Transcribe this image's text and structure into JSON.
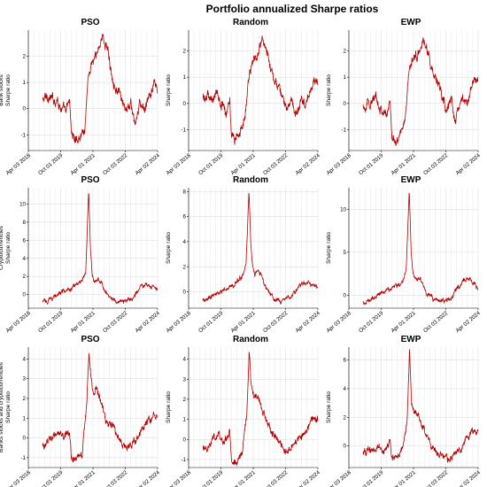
{
  "figure": {
    "title": "Portfolio annualized Sharpe ratios",
    "series_color": "#b30000"
  },
  "chart_data": [
    {
      "type": "line",
      "row": 0,
      "col": 0,
      "title": "PSO",
      "ylabel_lines": [
        "Bank stocks",
        "Sharpe ratio"
      ],
      "xlabel": "",
      "x_ticks": [
        "Apr 03 2018",
        "Oct 01 2019",
        "Apr 01 2021",
        "Oct 03 2022",
        "Apr 02 2024"
      ],
      "xlim": [
        "2018-04-03",
        "2024-04-02"
      ],
      "ylim": [
        -1.6,
        3.0
      ],
      "y_ticks": [
        -1,
        0,
        1,
        2
      ],
      "grid": true,
      "series": [
        {
          "x": [
            "2018-12-01",
            "2019-03-01",
            "2019-06-01",
            "2019-08-01",
            "2019-10-01",
            "2020-01-01",
            "2020-03-01",
            "2020-04-01",
            "2020-06-01",
            "2020-08-01",
            "2020-10-01",
            "2020-11-15",
            "2021-01-01",
            "2021-03-01",
            "2021-06-01",
            "2021-09-01",
            "2021-12-01",
            "2022-02-01",
            "2022-05-01",
            "2022-08-01",
            "2022-10-01",
            "2023-01-01",
            "2023-03-15",
            "2023-06-01",
            "2023-09-01",
            "2023-12-01",
            "2024-02-01",
            "2024-04-01"
          ],
          "y": [
            0.3,
            0.5,
            0.3,
            0.4,
            0.1,
            -0.2,
            0.4,
            -0.9,
            -1.2,
            -1.1,
            -0.9,
            -0.8,
            1.0,
            1.7,
            2.0,
            2.8,
            2.3,
            1.5,
            0.8,
            0.3,
            -0.2,
            0.2,
            -0.7,
            0.1,
            0.0,
            0.5,
            1.0,
            0.7
          ],
          "noise": 0.22
        }
      ]
    },
    {
      "type": "line",
      "row": 0,
      "col": 1,
      "title": "Random",
      "ylabel_lines": [
        "Sharpe ratio"
      ],
      "xlabel": "",
      "x_ticks": [
        "Apr 03 2018",
        "Oct 01 2019",
        "Apr 01 2021",
        "Oct 03 2022",
        "Apr 02 2024"
      ],
      "xlim": [
        "2018-04-03",
        "2024-04-02"
      ],
      "ylim": [
        -1.8,
        2.8
      ],
      "y_ticks": [
        -1,
        0,
        1,
        2
      ],
      "grid": true,
      "series": [
        {
          "x": [
            "2018-12-01",
            "2019-03-01",
            "2019-06-01",
            "2019-08-01",
            "2019-10-01",
            "2020-01-01",
            "2020-03-01",
            "2020-04-01",
            "2020-06-01",
            "2020-08-01",
            "2020-10-01",
            "2020-11-15",
            "2021-01-01",
            "2021-03-01",
            "2021-06-01",
            "2021-09-01",
            "2021-12-01",
            "2022-02-01",
            "2022-05-01",
            "2022-08-01",
            "2022-10-01",
            "2023-01-01",
            "2023-03-15",
            "2023-06-01",
            "2023-09-01",
            "2023-12-01",
            "2024-02-01",
            "2024-04-01"
          ],
          "y": [
            0.2,
            0.3,
            0.2,
            0.4,
            0.0,
            -0.3,
            0.3,
            -1.2,
            -1.4,
            -1.1,
            -0.9,
            -0.7,
            0.9,
            1.5,
            1.8,
            2.4,
            2.0,
            1.3,
            0.7,
            0.2,
            -0.1,
            0.1,
            -0.5,
            0.1,
            0.0,
            0.4,
            0.9,
            0.8
          ],
          "noise": 0.22
        }
      ]
    },
    {
      "type": "line",
      "row": 0,
      "col": 2,
      "title": "EWP",
      "ylabel_lines": [
        "Sharpe ratio"
      ],
      "xlabel": "",
      "x_ticks": [
        "Apr 03 2018",
        "Oct 01 2019",
        "Apr 01 2021",
        "Oct 03 2022",
        "Apr 02 2024"
      ],
      "xlim": [
        "2018-04-03",
        "2024-04-02"
      ],
      "ylim": [
        -1.8,
        2.8
      ],
      "y_ticks": [
        -1,
        0,
        1,
        2
      ],
      "grid": true,
      "series": [
        {
          "x": [
            "2018-12-01",
            "2019-03-01",
            "2019-06-01",
            "2019-08-01",
            "2019-10-01",
            "2020-01-01",
            "2020-03-01",
            "2020-04-01",
            "2020-06-01",
            "2020-08-01",
            "2020-10-01",
            "2020-11-15",
            "2021-01-01",
            "2021-03-01",
            "2021-06-01",
            "2021-09-01",
            "2021-12-01",
            "2022-02-01",
            "2022-05-01",
            "2022-08-01",
            "2022-10-01",
            "2023-01-01",
            "2023-03-15",
            "2023-06-01",
            "2023-09-01",
            "2023-12-01",
            "2024-02-01",
            "2024-04-01"
          ],
          "y": [
            -0.1,
            0.0,
            0.1,
            0.2,
            -0.2,
            -0.5,
            0.2,
            -1.2,
            -1.5,
            -1.2,
            -0.9,
            -0.6,
            1.0,
            1.6,
            1.9,
            2.4,
            2.0,
            1.3,
            0.8,
            0.3,
            -0.2,
            0.1,
            -0.7,
            0.1,
            0.0,
            0.5,
            0.9,
            0.8
          ],
          "noise": 0.22
        }
      ]
    },
    {
      "type": "line",
      "row": 1,
      "col": 0,
      "title": "PSO",
      "ylabel_lines": [
        "Cryptocurrencies",
        "Sharpe ratio"
      ],
      "xlabel": "",
      "x_ticks": [
        "Apr 03 2018",
        "Oct 01 2019",
        "Apr 01 2021",
        "Oct 03 2022",
        "Apr 02 2024"
      ],
      "xlim": [
        "2018-04-03",
        "2024-04-02"
      ],
      "ylim": [
        -1.5,
        11.8
      ],
      "y_ticks": [
        0,
        2,
        4,
        6,
        8,
        10
      ],
      "grid": true,
      "series": [
        {
          "x": [
            "2018-12-01",
            "2019-04-01",
            "2019-07-01",
            "2019-10-01",
            "2020-01-01",
            "2020-04-01",
            "2020-07-01",
            "2020-10-01",
            "2020-12-01",
            "2021-01-20",
            "2021-02-20",
            "2021-03-20",
            "2021-05-01",
            "2021-07-01",
            "2021-09-01",
            "2021-11-01",
            "2022-02-01",
            "2022-05-01",
            "2022-08-01",
            "2022-11-01",
            "2023-02-01",
            "2023-05-01",
            "2023-08-01",
            "2023-11-01",
            "2024-01-15",
            "2024-04-01"
          ],
          "y": [
            -0.8,
            -0.5,
            -0.2,
            0.2,
            0.4,
            0.6,
            1.0,
            1.4,
            2.6,
            11.5,
            5.0,
            2.3,
            1.4,
            1.8,
            1.2,
            0.4,
            -0.4,
            -0.7,
            -0.8,
            -0.7,
            -0.3,
            0.4,
            1.0,
            1.2,
            0.8,
            0.4
          ],
          "noise": 0.3
        }
      ]
    },
    {
      "type": "line",
      "row": 1,
      "col": 1,
      "title": "Random",
      "ylabel_lines": [
        "Sharpe ratio"
      ],
      "xlabel": "",
      "x_ticks": [
        "Apr 03 2018",
        "Oct 01 2019",
        "Apr 01 2021",
        "Oct 03 2022",
        "Apr 02 2024"
      ],
      "xlim": [
        "2018-04-03",
        "2024-04-02"
      ],
      "ylim": [
        -1.3,
        8.3
      ],
      "y_ticks": [
        0,
        2,
        4,
        6,
        8
      ],
      "grid": true,
      "series": [
        {
          "x": [
            "2018-12-01",
            "2019-04-01",
            "2019-07-01",
            "2019-10-01",
            "2020-01-01",
            "2020-04-01",
            "2020-07-01",
            "2020-10-01",
            "2020-12-01",
            "2021-01-20",
            "2021-02-20",
            "2021-03-20",
            "2021-05-01",
            "2021-07-01",
            "2021-09-01",
            "2021-11-01",
            "2022-02-01",
            "2022-05-01",
            "2022-08-01",
            "2022-11-01",
            "2023-02-01",
            "2023-05-01",
            "2023-08-01",
            "2023-11-01",
            "2024-01-15",
            "2024-04-01"
          ],
          "y": [
            -0.7,
            -0.5,
            -0.2,
            0.1,
            0.3,
            0.5,
            0.8,
            1.2,
            2.2,
            8.1,
            3.8,
            2.0,
            1.3,
            1.7,
            1.1,
            0.4,
            -0.3,
            -0.6,
            -0.7,
            -0.6,
            -0.3,
            0.3,
            0.7,
            0.8,
            0.5,
            0.3
          ],
          "noise": 0.22
        }
      ]
    },
    {
      "type": "line",
      "row": 1,
      "col": 2,
      "title": "EWP",
      "ylabel_lines": [
        "Sharpe ratio"
      ],
      "xlabel": "",
      "x_ticks": [
        "Apr 03 2018",
        "Oct 01 2019",
        "Apr 01 2021",
        "Oct 03 2022",
        "Apr 02 2024"
      ],
      "xlim": [
        "2018-04-03",
        "2024-04-02"
      ],
      "ylim": [
        -1.5,
        12.5
      ],
      "y_ticks": [
        0,
        5,
        10
      ],
      "grid": true,
      "series": [
        {
          "x": [
            "2018-12-01",
            "2019-04-01",
            "2019-07-01",
            "2019-10-01",
            "2020-01-01",
            "2020-04-01",
            "2020-07-01",
            "2020-10-01",
            "2020-12-01",
            "2021-01-20",
            "2021-02-20",
            "2021-03-20",
            "2021-05-01",
            "2021-07-01",
            "2021-09-01",
            "2021-11-01",
            "2022-02-01",
            "2022-05-01",
            "2022-08-01",
            "2022-11-01",
            "2023-02-01",
            "2023-05-01",
            "2023-08-01",
            "2023-11-01",
            "2024-01-15",
            "2024-04-01"
          ],
          "y": [
            -0.8,
            -0.5,
            -0.2,
            0.3,
            0.5,
            0.7,
            1.2,
            1.6,
            3.0,
            12.2,
            5.5,
            2.6,
            1.6,
            2.0,
            1.4,
            0.5,
            -0.3,
            -0.6,
            -0.7,
            -0.5,
            0.0,
            0.9,
            1.6,
            2.2,
            1.4,
            0.8
          ],
          "noise": 0.32
        }
      ]
    },
    {
      "type": "line",
      "row": 2,
      "col": 0,
      "title": "PSO",
      "ylabel_lines": [
        "Banks stocks and cryptocurrencies",
        "Sharpe ratio"
      ],
      "xlabel": "",
      "x_ticks": [
        "Apr 03 2018",
        "Oct 01 2019",
        "Apr 01 2021",
        "Oct 03 2022",
        "Apr 02 2024"
      ],
      "xlim": [
        "2018-04-03",
        "2024-04-02"
      ],
      "ylim": [
        -1.5,
        4.6
      ],
      "y_ticks": [
        -1,
        0,
        1,
        2,
        3,
        4
      ],
      "grid": true,
      "series": [
        {
          "x": [
            "2018-12-01",
            "2019-03-01",
            "2019-06-01",
            "2019-09-01",
            "2019-12-01",
            "2020-03-01",
            "2020-04-01",
            "2020-07-01",
            "2020-10-01",
            "2020-12-15",
            "2021-01-25",
            "2021-03-01",
            "2021-04-15",
            "2021-06-01",
            "2021-09-01",
            "2021-12-01",
            "2022-03-01",
            "2022-06-01",
            "2022-09-01",
            "2022-12-01",
            "2023-03-01",
            "2023-06-01",
            "2023-09-01",
            "2023-12-01",
            "2024-02-01",
            "2024-04-01"
          ],
          "y": [
            -0.4,
            0.0,
            0.1,
            0.3,
            0.0,
            0.4,
            -1.0,
            -1.2,
            -0.8,
            1.5,
            4.3,
            3.0,
            2.2,
            2.6,
            1.6,
            0.9,
            0.5,
            0.0,
            -0.3,
            -0.5,
            -0.2,
            0.2,
            0.6,
            0.9,
            1.3,
            1.2
          ],
          "noise": 0.24
        }
      ]
    },
    {
      "type": "line",
      "row": 2,
      "col": 1,
      "title": "Random",
      "ylabel_lines": [
        "Sharpe ratio"
      ],
      "xlabel": "",
      "x_ticks": [
        "Apr 03 2018",
        "Oct 01 2019",
        "Apr 01 2021",
        "Oct 03 2022",
        "Apr 02 2024"
      ],
      "xlim": [
        "2018-04-03",
        "2024-04-02"
      ],
      "ylim": [
        -1.4,
        4.6
      ],
      "y_ticks": [
        -1,
        0,
        1,
        2,
        3,
        4
      ],
      "grid": true,
      "series": [
        {
          "x": [
            "2018-12-01",
            "2019-03-01",
            "2019-06-01",
            "2019-09-01",
            "2019-12-01",
            "2020-03-01",
            "2020-04-01",
            "2020-07-01",
            "2020-10-01",
            "2020-12-15",
            "2021-01-25",
            "2021-03-01",
            "2021-04-15",
            "2021-06-01",
            "2021-09-01",
            "2021-12-01",
            "2022-03-01",
            "2022-06-01",
            "2022-09-01",
            "2022-12-01",
            "2023-03-01",
            "2023-06-01",
            "2023-09-01",
            "2023-12-01",
            "2024-02-01",
            "2024-04-01"
          ],
          "y": [
            -0.5,
            -0.2,
            0.0,
            0.2,
            -0.1,
            0.3,
            -1.0,
            -1.1,
            -0.7,
            1.2,
            4.3,
            2.6,
            2.0,
            2.3,
            1.5,
            0.8,
            0.3,
            -0.1,
            -0.4,
            -0.5,
            -0.2,
            0.1,
            0.5,
            0.8,
            1.1,
            1.0
          ],
          "noise": 0.22
        }
      ]
    },
    {
      "type": "line",
      "row": 2,
      "col": 2,
      "title": "EWP",
      "ylabel_lines": [
        "Sharpe ratio"
      ],
      "xlabel": "",
      "x_ticks": [
        "Apr 03 2018",
        "Oct 01 2019",
        "Apr 01 2021",
        "Oct 03 2022",
        "Apr 02 2024"
      ],
      "xlim": [
        "2018-04-03",
        "2024-04-02"
      ],
      "ylim": [
        -1.5,
        6.9
      ],
      "y_ticks": [
        0,
        2,
        4,
        6
      ],
      "grid": true,
      "series": [
        {
          "x": [
            "2018-12-01",
            "2019-03-01",
            "2019-06-01",
            "2019-09-01",
            "2019-12-01",
            "2020-03-01",
            "2020-04-01",
            "2020-07-01",
            "2020-10-01",
            "2020-12-15",
            "2021-01-25",
            "2021-03-01",
            "2021-04-15",
            "2021-06-01",
            "2021-09-01",
            "2021-12-01",
            "2022-03-01",
            "2022-06-01",
            "2022-09-01",
            "2022-12-01",
            "2023-03-01",
            "2023-06-01",
            "2023-09-01",
            "2023-12-01",
            "2024-02-01",
            "2024-04-01"
          ],
          "y": [
            -0.5,
            -0.3,
            -0.2,
            0.0,
            -0.3,
            0.3,
            -0.9,
            -0.7,
            -0.2,
            1.6,
            6.7,
            3.0,
            2.2,
            2.4,
            1.4,
            0.5,
            -0.2,
            -0.6,
            -0.9,
            -1.0,
            -0.6,
            -0.2,
            0.4,
            0.9,
            1.3,
            1.0
          ],
          "noise": 0.28
        }
      ]
    }
  ]
}
